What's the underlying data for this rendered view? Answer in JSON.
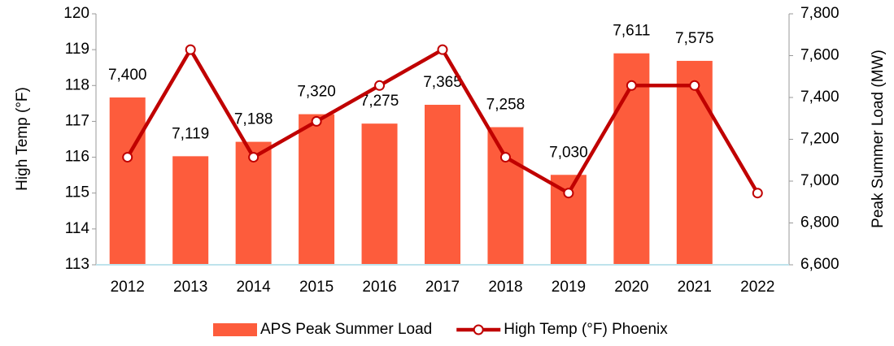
{
  "chart_data": {
    "type": "bar",
    "categories": [
      "2012",
      "2013",
      "2014",
      "2015",
      "2016",
      "2017",
      "2018",
      "2019",
      "2020",
      "2021",
      "2022"
    ],
    "ylabel": "High Temp (°F)",
    "y2label": "Peak Summer Load (MW)",
    "ylim": [
      113,
      120
    ],
    "yticks": [
      113,
      114,
      115,
      116,
      117,
      118,
      119,
      120
    ],
    "y2lim": [
      6600,
      7800
    ],
    "y2ticks": [
      {
        "value": 6600,
        "label": "6,600"
      },
      {
        "value": 6800,
        "label": "6,800"
      },
      {
        "value": 7000,
        "label": "7,000"
      },
      {
        "value": 7200,
        "label": "7,200"
      },
      {
        "value": 7400,
        "label": "7,400"
      },
      {
        "value": 7600,
        "label": "7,600"
      },
      {
        "value": 7800,
        "label": "7,800"
      }
    ],
    "legend": "bottom",
    "series": [
      {
        "name": "APS Peak Summer Load",
        "type": "bar",
        "axis": "y2",
        "color": "#fd5c3c",
        "values": [
          7400,
          7119,
          7188,
          7320,
          7275,
          7365,
          7258,
          7030,
          7611,
          7575,
          null
        ],
        "value_labels": [
          "7,400",
          "7,119",
          "7,188",
          "7,320",
          "7,275",
          "7,365",
          "7,258",
          "7,030",
          "7,611",
          "7,575",
          null
        ]
      },
      {
        "name": "High Temp (°F) Phoenix",
        "type": "line",
        "axis": "y",
        "color": "#c00000",
        "values": [
          116,
          119,
          116,
          117,
          118,
          119,
          116,
          115,
          118,
          118,
          115
        ]
      }
    ]
  }
}
